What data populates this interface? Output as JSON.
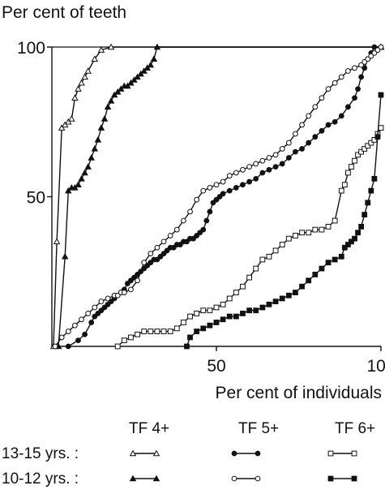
{
  "chart_data": {
    "type": "line",
    "ylabel": "Per cent of teeth",
    "xlabel": "Per cent of individuals",
    "xlim": [
      0,
      100
    ],
    "ylim": [
      0,
      100
    ],
    "x_ticks": [
      50,
      100
    ],
    "y_ticks": [
      50,
      100
    ],
    "x_tick_labels": [
      "50",
      "100"
    ],
    "y_tick_labels": [
      "50",
      "100"
    ],
    "grid": false,
    "legend": {
      "columns": [
        "TF 4+",
        "TF 5+",
        "TF 6+"
      ],
      "rows": [
        "13-15 yrs. :",
        "10-12 yrs. :"
      ]
    },
    "series": [
      {
        "key": "tf4_13_15",
        "group": "TF 4+",
        "age": "13-15 yrs.",
        "marker": "triangle",
        "filled": false,
        "x": [
          0.5,
          1.5,
          3,
          4,
          5,
          6,
          7,
          8,
          9,
          10,
          11,
          13,
          15,
          18,
          100
        ],
        "y": [
          0,
          35,
          73,
          74,
          75,
          76,
          83,
          86,
          88,
          90,
          92,
          96,
          99,
          100,
          100
        ]
      },
      {
        "key": "tf4_10_12",
        "group": "TF 4+",
        "age": "10-12 yrs.",
        "marker": "triangle",
        "filled": true,
        "x": [
          2,
          4,
          5,
          6,
          7,
          8,
          9,
          10,
          11,
          12,
          13,
          14,
          15,
          16,
          17,
          18,
          19,
          20,
          21,
          22,
          23,
          24,
          25,
          26,
          27,
          28,
          29,
          30,
          31,
          32,
          100
        ],
        "y": [
          0,
          30,
          52,
          53,
          53,
          54,
          56,
          58,
          60,
          63,
          66,
          69,
          73,
          76,
          80,
          82,
          84,
          85,
          86,
          87,
          87,
          88,
          89,
          90,
          91,
          92,
          93,
          94,
          96,
          100,
          100
        ]
      },
      {
        "key": "tf5_13_15",
        "group": "TF 5+",
        "age": "13-15 yrs.",
        "marker": "circle",
        "filled": true,
        "x": [
          5,
          8,
          10,
          12,
          13,
          14,
          15,
          16,
          17,
          18,
          19,
          20,
          21,
          22,
          23,
          24,
          25,
          26,
          27,
          28,
          29,
          30,
          31,
          32,
          33,
          34,
          35,
          36,
          37,
          38,
          39,
          40,
          41,
          42,
          43,
          44,
          45,
          46,
          47,
          48,
          49,
          50,
          51,
          52,
          54,
          56,
          58,
          60,
          62,
          64,
          66,
          68,
          70,
          72,
          74,
          76,
          78,
          80,
          82,
          84,
          86,
          88,
          90,
          92,
          93,
          94,
          95,
          96,
          97,
          98,
          100
        ],
        "y": [
          0,
          2,
          4,
          8,
          10,
          11,
          12,
          13,
          14,
          15,
          16,
          17,
          18,
          19,
          21,
          22,
          23,
          24,
          25,
          26,
          27,
          28,
          29,
          29,
          30,
          31,
          32,
          33,
          33,
          34,
          34,
          35,
          35,
          36,
          36,
          37,
          38,
          39,
          42,
          45,
          48,
          49,
          50,
          51,
          52,
          53,
          54,
          55,
          56,
          58,
          59,
          60,
          61,
          63,
          65,
          66,
          68,
          70,
          72,
          74,
          75,
          77,
          80,
          83,
          86,
          90,
          93,
          96,
          98,
          100,
          100
        ]
      },
      {
        "key": "tf5_10_12",
        "group": "TF 5+",
        "age": "10-12 yrs.",
        "marker": "circle",
        "filled": false,
        "x": [
          1,
          3,
          5,
          7,
          9,
          11,
          13,
          15,
          17,
          19,
          20,
          21,
          22,
          24,
          26,
          28,
          30,
          32,
          34,
          36,
          38,
          40,
          42,
          44,
          46,
          48,
          50,
          52,
          54,
          56,
          58,
          60,
          62,
          64,
          66,
          68,
          70,
          72,
          74,
          76,
          78,
          80,
          82,
          84,
          86,
          88,
          90,
          92,
          94,
          95,
          96,
          97,
          98,
          99,
          100
        ],
        "y": [
          0,
          3,
          5,
          7,
          9,
          11,
          13,
          15,
          16,
          17,
          17,
          18,
          18,
          19,
          22,
          28,
          31,
          33,
          35,
          37,
          39,
          42,
          45,
          49,
          52,
          53,
          54,
          55,
          57,
          58,
          59,
          60,
          61,
          62,
          63,
          64,
          66,
          68,
          71,
          74,
          77,
          80,
          83,
          86,
          88,
          90,
          92,
          93,
          94,
          95,
          96,
          97,
          98,
          99,
          100
        ]
      },
      {
        "key": "tf6_13_15",
        "group": "TF 6+",
        "age": "13-15 yrs.",
        "marker": "square",
        "filled": false,
        "x": [
          20,
          22,
          24,
          26,
          28,
          30,
          32,
          34,
          36,
          38,
          40,
          42,
          44,
          46,
          48,
          50,
          52,
          54,
          56,
          58,
          60,
          62,
          64,
          66,
          68,
          70,
          72,
          74,
          76,
          78,
          80,
          82,
          84,
          86,
          88,
          89,
          90,
          91,
          92,
          93,
          94,
          95,
          96,
          97,
          98,
          99,
          100
        ],
        "y": [
          0,
          2,
          3,
          4,
          5,
          5,
          5,
          5,
          5,
          6,
          8,
          10,
          11,
          12,
          12,
          13,
          14,
          16,
          18,
          20,
          23,
          26,
          29,
          30,
          32,
          34,
          36,
          37,
          38,
          38,
          39,
          39,
          40,
          42,
          52,
          54,
          58,
          60,
          62,
          64,
          65,
          66,
          67,
          68,
          69,
          71,
          73
        ]
      },
      {
        "key": "tf6_10_12",
        "group": "TF 6+",
        "age": "10-12 yrs.",
        "marker": "square",
        "filled": true,
        "x": [
          41,
          42,
          44,
          46,
          48,
          50,
          52,
          54,
          56,
          58,
          60,
          62,
          64,
          66,
          68,
          70,
          72,
          74,
          76,
          78,
          80,
          82,
          84,
          86,
          88,
          89,
          90,
          91,
          92,
          93,
          94,
          95,
          96,
          97,
          98,
          99,
          100
        ],
        "y": [
          0,
          3,
          5,
          6,
          7,
          8,
          9,
          10,
          10,
          11,
          12,
          12,
          13,
          14,
          15,
          16,
          17,
          18,
          20,
          22,
          24,
          26,
          28,
          29,
          30,
          33,
          34,
          35,
          36,
          38,
          40,
          44,
          48,
          52,
          56,
          70,
          84
        ]
      }
    ]
  }
}
